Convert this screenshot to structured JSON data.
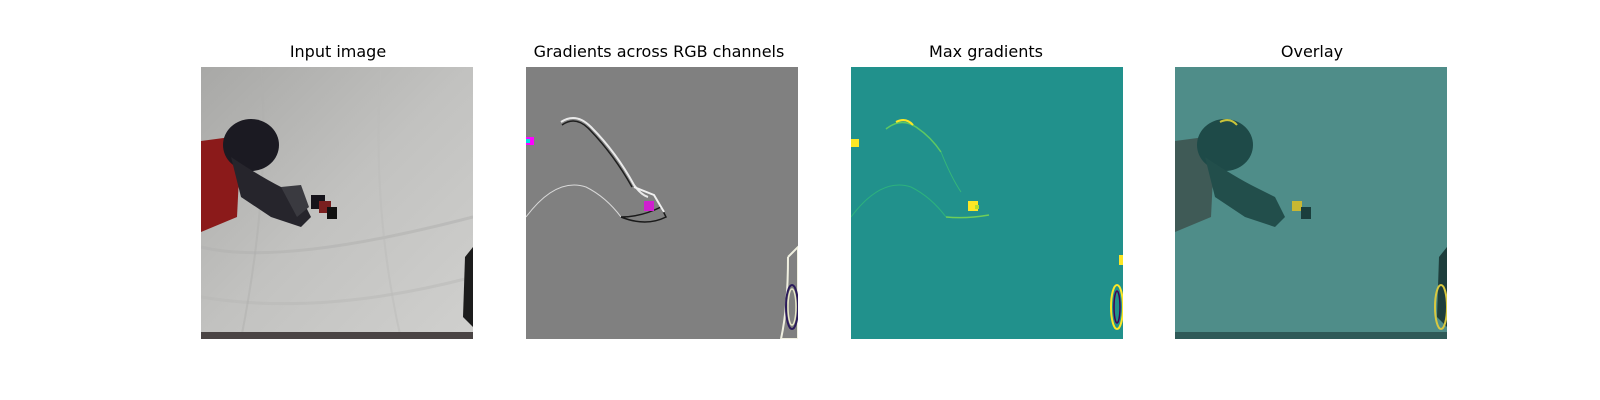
{
  "figure": {
    "panels": [
      {
        "title": "Input image"
      },
      {
        "title": "Gradients across RGB channels"
      },
      {
        "title": "Max gradients"
      },
      {
        "title": "Overlay"
      }
    ]
  },
  "colors": {
    "background": "#ffffff",
    "input_backdrop": "#b9b9b6",
    "gradient_neutral": "#808080",
    "max_grad_base": "#21918c",
    "max_grad_highlight": "#fde725",
    "overlay_base": "#4f8d89"
  }
}
